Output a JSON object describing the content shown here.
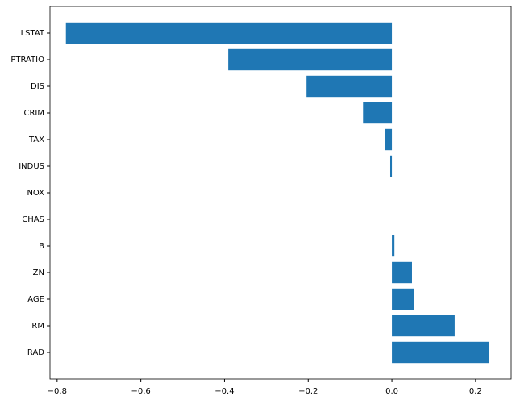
{
  "chart_data": {
    "type": "barh",
    "categories": [
      "LSTAT",
      "PTRATIO",
      "DIS",
      "CRIM",
      "TAX",
      "INDUS",
      "NOX",
      "CHAS",
      "B",
      "ZN",
      "AGE",
      "RM",
      "RAD"
    ],
    "values": [
      -0.779,
      -0.391,
      -0.204,
      -0.069,
      -0.017,
      -0.004,
      0,
      0,
      0.006,
      0.048,
      0.052,
      0.15,
      0.233
    ],
    "color": "#1f77b4",
    "xlim": [
      -0.817,
      0.285
    ],
    "xticks": [
      {
        "value": -0.8,
        "label": "−0.8"
      },
      {
        "value": -0.6,
        "label": "−0.6"
      },
      {
        "value": -0.4,
        "label": "−0.4"
      },
      {
        "value": -0.2,
        "label": "−0.2"
      },
      {
        "value": 0,
        "label": "0.0"
      },
      0.2
    ]
  }
}
